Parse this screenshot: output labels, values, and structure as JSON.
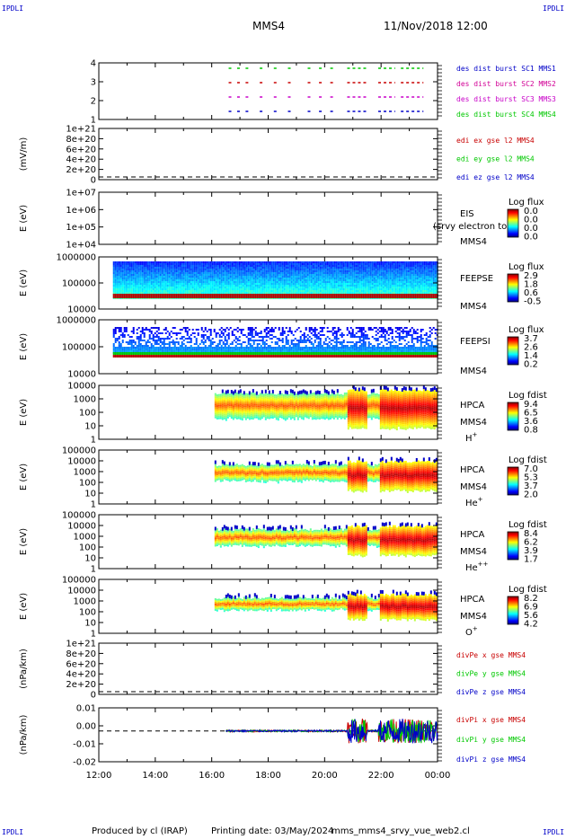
{
  "corner_label": "IPDLI",
  "header": {
    "spacecraft": "MMS4",
    "datetime": "11/Nov/2018 12:00"
  },
  "footer": {
    "produced": "Produced by cl (IRAP)",
    "printing": "Printing date: 03/May/2024",
    "script": "mms_mms4_srvy_vue_web2.cl"
  },
  "chart_data": [
    {
      "id": "burst",
      "type": "scatter",
      "yticks": [
        "4",
        "3",
        "2",
        "1"
      ],
      "legend": [
        {
          "text": "des dist burst SC1 MMS1",
          "color": "#0000c8"
        },
        {
          "text": "des dist burst SC2 MMS2",
          "color": "#d20096"
        },
        {
          "text": "des dist burst SC3 MMS3",
          "color": "#c800c8"
        },
        {
          "text": "des dist burst SC4 MMS4",
          "color": "#00c800"
        }
      ],
      "x_ranges_hours": [
        [
          16.6,
          16.7
        ],
        [
          16.9,
          17.0
        ],
        [
          17.2,
          17.3
        ],
        [
          17.7,
          17.8
        ],
        [
          18.2,
          18.3
        ],
        [
          18.7,
          18.8
        ],
        [
          19.4,
          19.5
        ],
        [
          19.8,
          19.9
        ],
        [
          20.2,
          20.3
        ],
        [
          20.8,
          21.5
        ],
        [
          21.9,
          22.5
        ],
        [
          22.7,
          23.5
        ]
      ],
      "color_by_level": {
        "4": "#00c800",
        "3": "#c80000",
        "2": "#c800c8",
        "1": "#0000c8"
      }
    },
    {
      "id": "edi",
      "type": "line",
      "ylabel": "(mV/m)",
      "yticks": [
        "1e+21",
        "8e+20",
        "6e+20",
        "4e+20",
        "2e+20",
        "0"
      ],
      "legend": [
        {
          "text": "edi ex gse l2 MMS4",
          "color": "#c80000"
        },
        {
          "text": "edi ey gse l2 MMS4",
          "color": "#00c800"
        },
        {
          "text": "edi ez gse l2 MMS4",
          "color": "#0000c8"
        }
      ]
    },
    {
      "id": "eis",
      "type": "heatmap",
      "ylabel": "E (eV)",
      "yticks": [
        "1e+07",
        "1e+06",
        "1e+05",
        "1e+04"
      ],
      "instrument": "EIS",
      "species": " ",
      "sc": "MMS4",
      "overlay_text": "(srvy electron to",
      "colorbar_title": "Log flux",
      "colorbar_ticks": [
        "0.0",
        "0.0",
        "0.0",
        "0.0"
      ]
    },
    {
      "id": "feepse",
      "type": "heatmap",
      "ylabel": "E (eV)",
      "yticks": [
        "1000000",
        "100000",
        "10000"
      ],
      "instrument": "FEEPSE",
      "sc": "MMS4",
      "colorbar_title": "Log flux",
      "colorbar_ticks": [
        "2.9",
        "1.8",
        "0.6",
        "-0.5"
      ],
      "x_range_hours": [
        12.5,
        24.0
      ]
    },
    {
      "id": "feepsi",
      "type": "heatmap",
      "ylabel": "E (eV)",
      "yticks": [
        "1000000",
        "100000",
        "10000"
      ],
      "instrument": "FEEPSI",
      "sc": "MMS4",
      "colorbar_title": "Log flux",
      "colorbar_ticks": [
        "3.7",
        "2.6",
        "1.4",
        "0.2"
      ],
      "x_range_hours": [
        12.5,
        24.0
      ]
    },
    {
      "id": "hpca_h",
      "type": "heatmap",
      "ylabel": "E (eV)",
      "yticks": [
        "10000",
        "1000",
        "100",
        "10",
        "1"
      ],
      "instrument": "HPCA",
      "sc": "MMS4",
      "species_base": "H",
      "species_sup": "+",
      "colorbar_title": "Log fdist",
      "colorbar_ticks": [
        "9.4",
        "6.5",
        "3.6",
        "0.8"
      ],
      "x_range_hours": [
        16.1,
        24.0
      ]
    },
    {
      "id": "hpca_he",
      "type": "heatmap",
      "ylabel": "E (eV)",
      "yticks": [
        "100000",
        "10000",
        "1000",
        "100",
        "10",
        "1"
      ],
      "instrument": "HPCA",
      "sc": "MMS4",
      "species_base": "He",
      "species_sup": "+",
      "colorbar_title": "Log fdist",
      "colorbar_ticks": [
        "7.0",
        "5.3",
        "3.7",
        "2.0"
      ],
      "x_range_hours": [
        16.1,
        24.0
      ]
    },
    {
      "id": "hpca_he2",
      "type": "heatmap",
      "ylabel": "E (eV)",
      "yticks": [
        "100000",
        "10000",
        "1000",
        "100",
        "10",
        "1"
      ],
      "instrument": "HPCA",
      "sc": "MMS4",
      "species_base": "He",
      "species_sup": "++",
      "colorbar_title": "Log fdist",
      "colorbar_ticks": [
        "8.4",
        "6.2",
        "3.9",
        "1.7"
      ],
      "x_range_hours": [
        16.1,
        24.0
      ]
    },
    {
      "id": "hpca_o",
      "type": "heatmap",
      "ylabel": "E (eV)",
      "yticks": [
        "100000",
        "10000",
        "1000",
        "100",
        "10",
        "1"
      ],
      "instrument": "HPCA",
      "sc": "MMS4",
      "species_base": "O",
      "species_sup": "+",
      "colorbar_title": "Log fdist",
      "colorbar_ticks": [
        "8.2",
        "6.9",
        "5.6",
        "4.2"
      ],
      "x_range_hours": [
        16.1,
        24.0
      ]
    },
    {
      "id": "divpe",
      "type": "line",
      "ylabel": "(nPa/km)",
      "yticks": [
        "1e+21",
        "8e+20",
        "6e+20",
        "4e+20",
        "2e+20",
        "0"
      ],
      "legend": [
        {
          "text": "divPe x gse MMS4",
          "color": "#c80000"
        },
        {
          "text": "divPe y gse MMS4",
          "color": "#00c800"
        },
        {
          "text": "divPe z gse MMS4",
          "color": "#0000c8"
        }
      ]
    },
    {
      "id": "divpi",
      "type": "line",
      "ylabel": "(nPa/km)",
      "yticks": [
        "0.01",
        "0.00",
        "-0.01",
        "-0.02"
      ],
      "ylim": [
        -0.02,
        0.015
      ],
      "legend": [
        {
          "text": "divPi x gse MMS4",
          "color": "#c80000"
        },
        {
          "text": "divPi y gse MMS4",
          "color": "#00c800"
        },
        {
          "text": "divPi z gse MMS4",
          "color": "#0000c8"
        }
      ],
      "x_range_hours": [
        16.5,
        24.0
      ]
    }
  ],
  "x_axis": {
    "ticks": [
      "12:00",
      "14:00",
      "16:00",
      "18:00",
      "20:00",
      "22:00",
      "00:00"
    ],
    "range_hours": [
      12,
      24
    ]
  }
}
